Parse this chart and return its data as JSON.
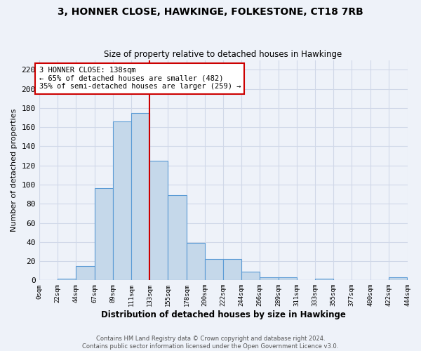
{
  "title": "3, HONNER CLOSE, HAWKINGE, FOLKESTONE, CT18 7RB",
  "subtitle": "Size of property relative to detached houses in Hawkinge",
  "xlabel": "Distribution of detached houses by size in Hawkinge",
  "ylabel": "Number of detached properties",
  "bin_edges": [
    0,
    22,
    44,
    67,
    89,
    111,
    133,
    155,
    178,
    200,
    222,
    244,
    266,
    289,
    311,
    333,
    355,
    377,
    400,
    422,
    444
  ],
  "bar_heights": [
    0,
    2,
    15,
    96,
    166,
    175,
    125,
    89,
    39,
    22,
    22,
    9,
    3,
    3,
    0,
    2,
    0,
    0,
    0,
    3
  ],
  "bar_color": "#c5d8ea",
  "bar_edge_color": "#5b9bd5",
  "property_size": 138,
  "property_bin_index": 6,
  "vline_color": "#cc0000",
  "annotation_text": "3 HONNER CLOSE: 138sqm\n← 65% of detached houses are smaller (482)\n35% of semi-detached houses are larger (259) →",
  "annotation_box_color": "#ffffff",
  "annotation_box_edge": "#cc0000",
  "ylim": [
    0,
    230
  ],
  "yticks": [
    0,
    20,
    40,
    60,
    80,
    100,
    120,
    140,
    160,
    180,
    200,
    220
  ],
  "grid_color": "#d0d8e8",
  "background_color": "#eef2f9",
  "footer_line1": "Contains HM Land Registry data © Crown copyright and database right 2024.",
  "footer_line2": "Contains public sector information licensed under the Open Government Licence v3.0."
}
